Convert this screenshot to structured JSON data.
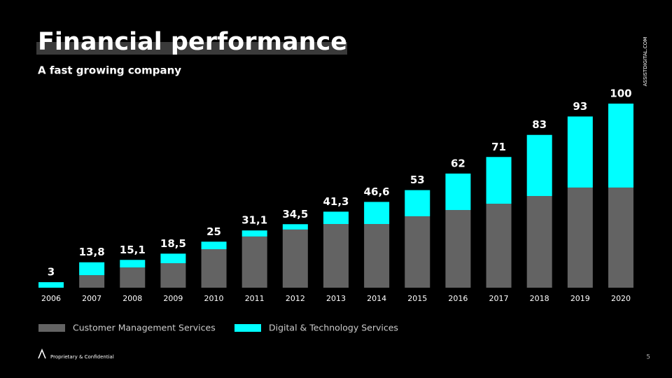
{
  "chart_data": {
    "type": "stacked_bar",
    "title": "Financial performance",
    "subtitle": "A fast growing company",
    "categories": [
      "2006",
      "2007",
      "2008",
      "2009",
      "2010",
      "2011",
      "2012",
      "2013",
      "2014",
      "2015",
      "2016",
      "2017",
      "2018",
      "2019",
      "2020"
    ],
    "series": [
      {
        "name": "Customer Management Services",
        "color": "#636363",
        "values": [
          0,
          6.8,
          11,
          13.3,
          20.9,
          27.8,
          31.6,
          34.6,
          34.6,
          38.8,
          42.2,
          45.6,
          49.8,
          54.4,
          54.4
        ]
      },
      {
        "name": "Digital & Technology Services",
        "color": "#00ffff",
        "values": [
          3,
          7,
          4.1,
          5.2,
          4.1,
          3.3,
          2.9,
          6.7,
          12,
          14.2,
          19.8,
          25.4,
          33.2,
          38.6,
          45.6
        ]
      }
    ],
    "totals": [
      3,
      13.8,
      15.1,
      18.5,
      25,
      31.1,
      34.5,
      41.3,
      46.6,
      53,
      62,
      71,
      83,
      93,
      100
    ],
    "total_labels": [
      "3",
      "13,8",
      "15,1",
      "18,5",
      "25",
      "31,1",
      "34,5",
      "41,3",
      "46,6",
      "53",
      "62",
      "71",
      "83",
      "93",
      "100"
    ],
    "ylim": [
      0,
      100
    ]
  },
  "brand": "ASSISTDIGITAL.COM",
  "footer": "Proprietary & Confidential",
  "page_number": "5"
}
